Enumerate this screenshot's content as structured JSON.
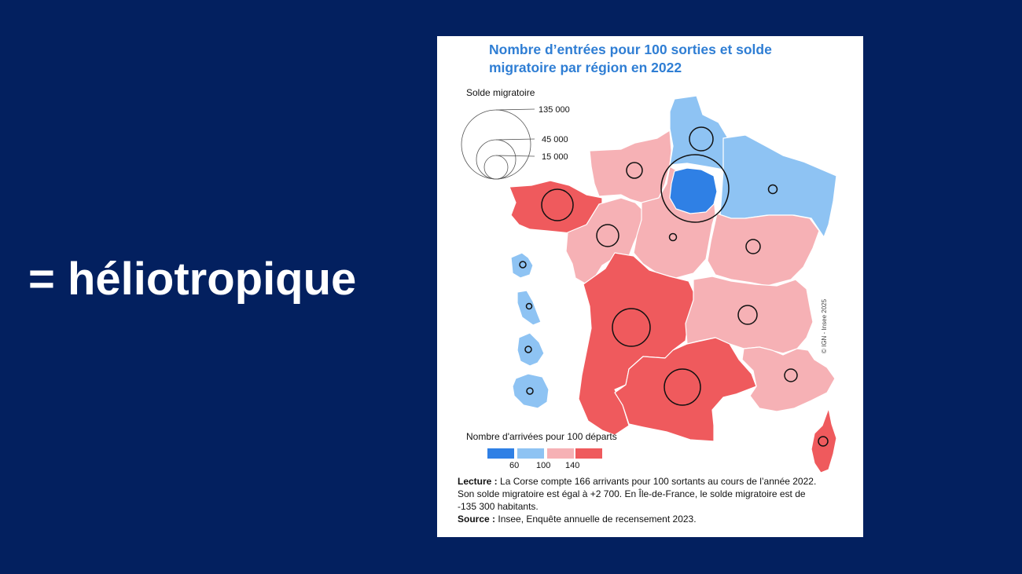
{
  "slide": {
    "heading": "= héliotropique"
  },
  "figure": {
    "title": "Nombre d’entrées pour 100 sorties et solde migratoire par région en 2022",
    "circle_legend": {
      "title": "Solde migratoire",
      "values": [
        "135 000",
        "45 000",
        "15 000"
      ]
    },
    "color_legend": {
      "title": "Nombre d'arrivées pour 100 départs",
      "thresholds": [
        "60",
        "100",
        "140"
      ],
      "classes": [
        {
          "range": "< 60",
          "color": "#2f80e5"
        },
        {
          "range": "60 – 100",
          "color": "#8ec3f3"
        },
        {
          "range": "100 – 140",
          "color": "#f6b1b5"
        },
        {
          "range": "> 140",
          "color": "#ef5a5d"
        }
      ]
    },
    "regions": [
      {
        "name": "Hauts-de-France",
        "class": "60 – 100"
      },
      {
        "name": "Grand Est",
        "class": "60 – 100"
      },
      {
        "name": "Île-de-France",
        "class": "< 60",
        "solde": -135300
      },
      {
        "name": "Normandie",
        "class": "100 – 140"
      },
      {
        "name": "Bretagne",
        "class": "> 140"
      },
      {
        "name": "Pays de la Loire",
        "class": "100 – 140"
      },
      {
        "name": "Centre-Val de Loire",
        "class": "100 – 140"
      },
      {
        "name": "Bourgogne-Franche-Comté",
        "class": "100 – 140"
      },
      {
        "name": "Nouvelle-Aquitaine",
        "class": "> 140"
      },
      {
        "name": "Auvergne-Rhône-Alpes",
        "class": "100 – 140"
      },
      {
        "name": "Occitanie",
        "class": "> 140"
      },
      {
        "name": "Provence-Alpes-Côte d'Azur",
        "class": "100 – 140"
      },
      {
        "name": "Corse",
        "class": "> 140",
        "entries_per_100": 166,
        "solde": 2700
      },
      {
        "name": "Guadeloupe",
        "class": "60 – 100"
      },
      {
        "name": "Martinique",
        "class": "60 – 100"
      },
      {
        "name": "Guyane",
        "class": "60 – 100"
      },
      {
        "name": "La Réunion",
        "class": "60 – 100"
      }
    ],
    "lecture_label": "Lecture :",
    "lecture_text_1": "La Corse compte 166 arrivants pour 100 sortants au cours de l’année 2022.",
    "lecture_text_2": "Son solde migratoire est égal à +2 700. En Île-de-France, le solde migratoire est de",
    "lecture_text_3": "-135 300 habitants.",
    "source_label": "Source :",
    "source_text": "Insee, Enquête annuelle de recensement 2023.",
    "copyright": "© IGN - Insee 2025"
  }
}
